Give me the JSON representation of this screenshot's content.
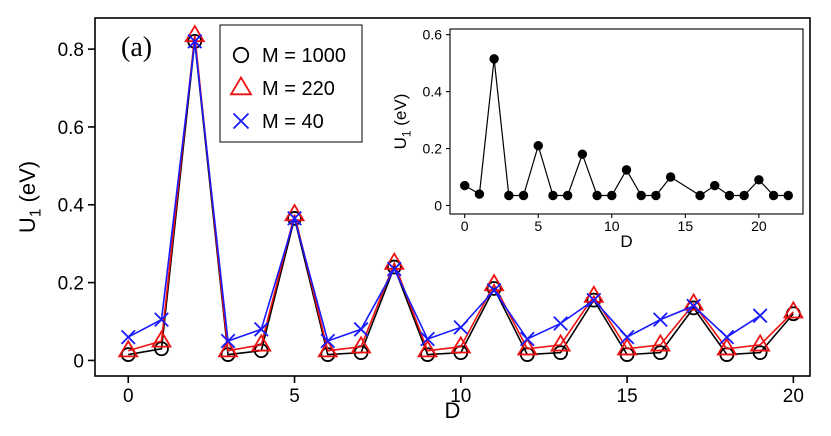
{
  "chart_data": [
    {
      "type": "line",
      "panel_label": "(a)",
      "xlabel": "D",
      "ylabel_main": "U",
      "ylabel_sub": "1",
      "ylabel_unit": " (eV)",
      "xlim": [
        -1,
        20.5
      ],
      "ylim": [
        -0.04,
        0.88
      ],
      "xticks": [
        0,
        5,
        10,
        15,
        20
      ],
      "xtick_labels": [
        "0",
        "5",
        "10",
        "15",
        "20"
      ],
      "yticks": [
        0,
        0.2,
        0.4,
        0.6,
        0.8
      ],
      "ytick_labels": [
        "0",
        "0.2",
        "0.4",
        "0.6",
        "0.8"
      ],
      "legend_position": "top-left",
      "series": [
        {
          "name": "M = 1000",
          "color": "#000000",
          "marker": "circle",
          "x": [
            0,
            1,
            2,
            3,
            4,
            5,
            6,
            7,
            8,
            9,
            10,
            11,
            12,
            13,
            14,
            15,
            16,
            17,
            18,
            19,
            20
          ],
          "values": [
            0.015,
            0.03,
            0.82,
            0.015,
            0.025,
            0.365,
            0.015,
            0.02,
            0.24,
            0.015,
            0.02,
            0.185,
            0.015,
            0.02,
            0.155,
            0.015,
            0.02,
            0.135,
            0.015,
            0.02,
            0.12
          ]
        },
        {
          "name": "M = 220",
          "color": "#ee1111",
          "marker": "triangle",
          "x": [
            0,
            1,
            2,
            3,
            4,
            5,
            6,
            7,
            8,
            9,
            10,
            11,
            12,
            13,
            14,
            15,
            16,
            17,
            18,
            19,
            20
          ],
          "values": [
            0.025,
            0.05,
            0.835,
            0.025,
            0.04,
            0.375,
            0.025,
            0.035,
            0.25,
            0.025,
            0.035,
            0.195,
            0.03,
            0.04,
            0.165,
            0.03,
            0.04,
            0.145,
            0.03,
            0.04,
            0.125
          ]
        },
        {
          "name": "M = 40",
          "color": "#1a1aff",
          "marker": "x",
          "x": [
            0,
            1,
            2,
            3,
            4,
            5,
            6,
            7,
            8,
            9,
            10,
            11,
            12,
            13,
            14,
            15,
            16,
            17,
            18,
            19
          ],
          "values": [
            0.06,
            0.105,
            0.82,
            0.05,
            0.08,
            0.365,
            0.05,
            0.08,
            0.235,
            0.055,
            0.085,
            0.18,
            0.055,
            0.095,
            0.155,
            0.06,
            0.105,
            0.14,
            0.06,
            0.115
          ]
        }
      ]
    },
    {
      "type": "line",
      "role": "inset",
      "xlabel": "D",
      "ylabel_main": "U",
      "ylabel_sub": "1",
      "ylabel_unit": " (eV)",
      "xlim": [
        -1,
        23
      ],
      "ylim": [
        -0.03,
        0.62
      ],
      "xticks": [
        0,
        5,
        10,
        15,
        20
      ],
      "xtick_labels": [
        "0",
        "5",
        "10",
        "15",
        "20"
      ],
      "yticks": [
        0,
        0.2,
        0.4,
        0.6
      ],
      "ytick_labels": [
        "0",
        "0.2",
        "0.4",
        "0.6"
      ],
      "series": [
        {
          "name": "inset",
          "color": "#000000",
          "marker": "filled-circle",
          "x": [
            0,
            1,
            2,
            3,
            4,
            5,
            6,
            7,
            8,
            9,
            10,
            11,
            12,
            13,
            14,
            16,
            17,
            18,
            19,
            20,
            21,
            22
          ],
          "values": [
            0.07,
            0.04,
            0.515,
            0.035,
            0.035,
            0.21,
            0.035,
            0.035,
            0.18,
            0.035,
            0.035,
            0.125,
            0.035,
            0.035,
            0.1,
            0.035,
            0.07,
            0.035,
            0.035,
            0.09,
            0.035,
            0.035
          ]
        }
      ]
    }
  ]
}
